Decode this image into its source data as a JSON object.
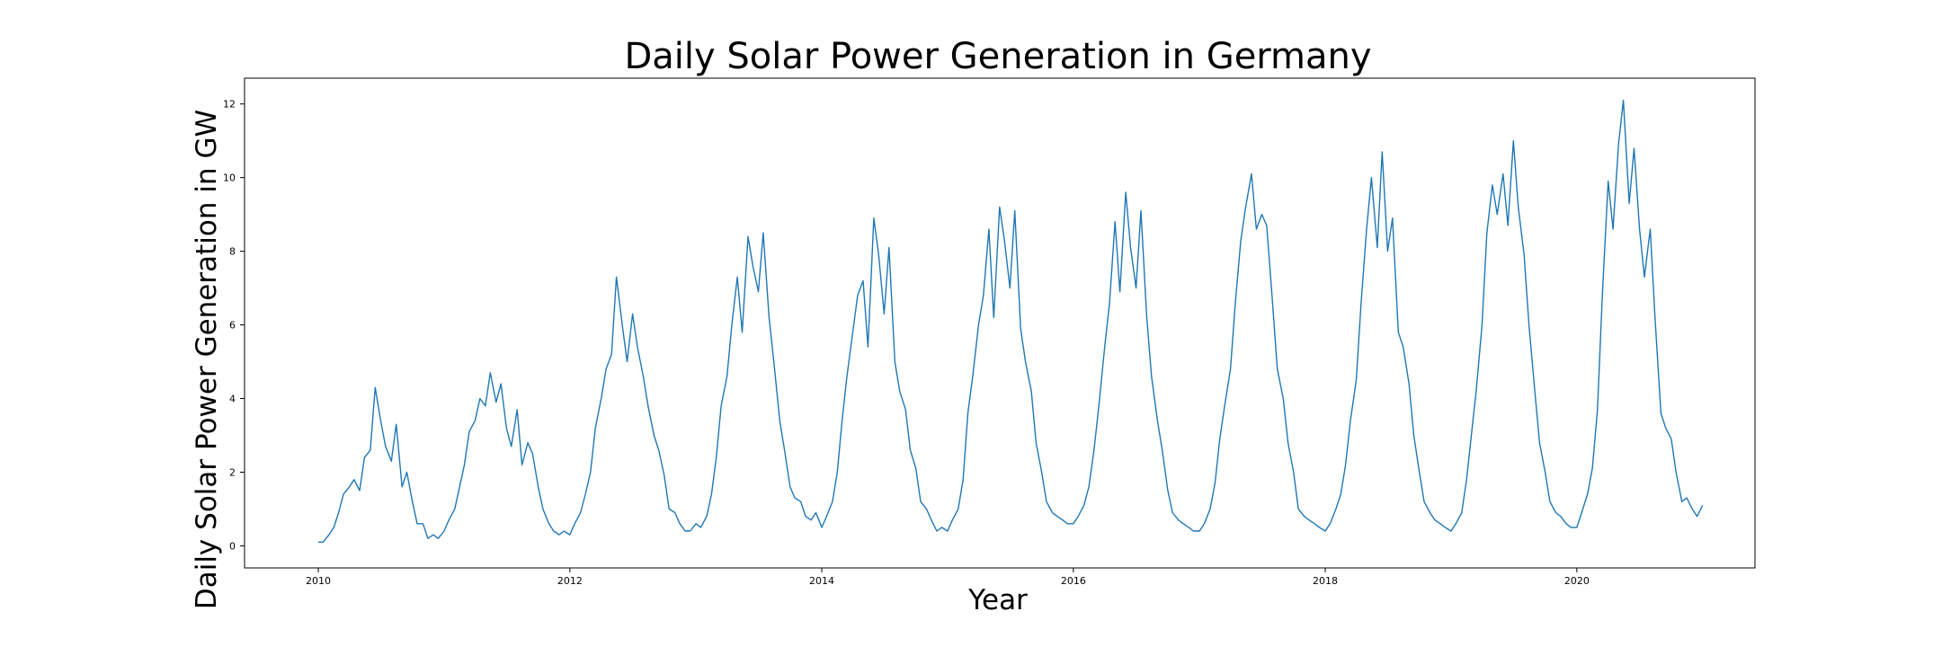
{
  "chart_data": {
    "type": "line",
    "title": "Daily Solar Power Generation in Germany",
    "xlabel": "Year",
    "ylabel": "Daily Solar Power Generation in GW",
    "xlim": [
      "2009-06-01",
      "2021-06-01"
    ],
    "ylim": [
      -0.6,
      12.7
    ],
    "x_ticks": [
      {
        "label": "2010",
        "date": "2010-01-01"
      },
      {
        "label": "2012",
        "date": "2012-01-01"
      },
      {
        "label": "2014",
        "date": "2014-01-01"
      },
      {
        "label": "2016",
        "date": "2016-01-01"
      },
      {
        "label": "2018",
        "date": "2018-01-01"
      },
      {
        "label": "2020",
        "date": "2020-01-01"
      }
    ],
    "y_ticks": [
      0,
      2,
      4,
      6,
      8,
      10,
      12
    ],
    "grid": false,
    "legend": "none",
    "series": [
      {
        "color": "#1f77b4",
        "x": [
          "2010-01-01",
          "2010-01-15",
          "2010-02-01",
          "2010-02-15",
          "2010-03-01",
          "2010-03-15",
          "2010-04-01",
          "2010-04-15",
          "2010-05-01",
          "2010-05-15",
          "2010-06-01",
          "2010-06-15",
          "2010-07-01",
          "2010-07-15",
          "2010-08-01",
          "2010-08-15",
          "2010-09-01",
          "2010-09-15",
          "2010-10-01",
          "2010-10-15",
          "2010-11-01",
          "2010-11-15",
          "2010-12-01",
          "2010-12-15",
          "2011-01-01",
          "2011-01-15",
          "2011-02-01",
          "2011-02-15",
          "2011-03-01",
          "2011-03-15",
          "2011-04-01",
          "2011-04-15",
          "2011-05-01",
          "2011-05-15",
          "2011-06-01",
          "2011-06-15",
          "2011-07-01",
          "2011-07-15",
          "2011-08-01",
          "2011-08-15",
          "2011-09-01",
          "2011-09-15",
          "2011-10-01",
          "2011-10-15",
          "2011-11-01",
          "2011-11-15",
          "2011-12-01",
          "2011-12-15",
          "2012-01-01",
          "2012-01-15",
          "2012-02-01",
          "2012-02-15",
          "2012-03-01",
          "2012-03-15",
          "2012-04-01",
          "2012-04-15",
          "2012-05-01",
          "2012-05-15",
          "2012-06-01",
          "2012-06-15",
          "2012-07-01",
          "2012-07-15",
          "2012-08-01",
          "2012-08-15",
          "2012-09-01",
          "2012-09-15",
          "2012-10-01",
          "2012-10-15",
          "2012-11-01",
          "2012-11-15",
          "2012-12-01",
          "2012-12-15",
          "2013-01-01",
          "2013-01-15",
          "2013-02-01",
          "2013-02-15",
          "2013-03-01",
          "2013-03-15",
          "2013-04-01",
          "2013-04-15",
          "2013-05-01",
          "2013-05-15",
          "2013-06-01",
          "2013-06-15",
          "2013-07-01",
          "2013-07-15",
          "2013-08-01",
          "2013-08-15",
          "2013-09-01",
          "2013-09-15",
          "2013-10-01",
          "2013-10-15",
          "2013-11-01",
          "2013-11-15",
          "2013-12-01",
          "2013-12-15",
          "2014-01-01",
          "2014-01-15",
          "2014-02-01",
          "2014-02-15",
          "2014-03-01",
          "2014-03-15",
          "2014-04-01",
          "2014-04-15",
          "2014-05-01",
          "2014-05-15",
          "2014-06-01",
          "2014-06-15",
          "2014-07-01",
          "2014-07-15",
          "2014-08-01",
          "2014-08-15",
          "2014-09-01",
          "2014-09-15",
          "2014-10-01",
          "2014-10-15",
          "2014-11-01",
          "2014-11-15",
          "2014-12-01",
          "2014-12-15",
          "2015-01-01",
          "2015-01-15",
          "2015-02-01",
          "2015-02-15",
          "2015-03-01",
          "2015-03-15",
          "2015-04-01",
          "2015-04-15",
          "2015-05-01",
          "2015-05-15",
          "2015-06-01",
          "2015-06-15",
          "2015-07-01",
          "2015-07-15",
          "2015-08-01",
          "2015-08-15",
          "2015-09-01",
          "2015-09-15",
          "2015-10-01",
          "2015-10-15",
          "2015-11-01",
          "2015-11-15",
          "2015-12-01",
          "2015-12-15",
          "2016-01-01",
          "2016-01-15",
          "2016-02-01",
          "2016-02-15",
          "2016-03-01",
          "2016-03-15",
          "2016-04-01",
          "2016-04-15",
          "2016-05-01",
          "2016-05-15",
          "2016-06-01",
          "2016-06-15",
          "2016-07-01",
          "2016-07-15",
          "2016-08-01",
          "2016-08-15",
          "2016-09-01",
          "2016-09-15",
          "2016-10-01",
          "2016-10-15",
          "2016-11-01",
          "2016-11-15",
          "2016-12-01",
          "2016-12-15",
          "2017-01-01",
          "2017-01-15",
          "2017-02-01",
          "2017-02-15",
          "2017-03-01",
          "2017-03-15",
          "2017-04-01",
          "2017-04-15",
          "2017-05-01",
          "2017-05-15",
          "2017-06-01",
          "2017-06-15",
          "2017-07-01",
          "2017-07-15",
          "2017-08-01",
          "2017-08-15",
          "2017-09-01",
          "2017-09-15",
          "2017-10-01",
          "2017-10-15",
          "2017-11-01",
          "2017-11-15",
          "2017-12-01",
          "2017-12-15",
          "2018-01-01",
          "2018-01-15",
          "2018-02-01",
          "2018-02-15",
          "2018-03-01",
          "2018-03-15",
          "2018-04-01",
          "2018-04-15",
          "2018-05-01",
          "2018-05-15",
          "2018-06-01",
          "2018-06-15",
          "2018-07-01",
          "2018-07-15",
          "2018-08-01",
          "2018-08-15",
          "2018-09-01",
          "2018-09-15",
          "2018-10-01",
          "2018-10-15",
          "2018-11-01",
          "2018-11-15",
          "2018-12-01",
          "2018-12-15",
          "2019-01-01",
          "2019-01-15",
          "2019-02-01",
          "2019-02-15",
          "2019-03-01",
          "2019-03-15",
          "2019-04-01",
          "2019-04-15",
          "2019-05-01",
          "2019-05-15",
          "2019-06-01",
          "2019-06-15",
          "2019-07-01",
          "2019-07-15",
          "2019-08-01",
          "2019-08-15",
          "2019-09-01",
          "2019-09-15",
          "2019-10-01",
          "2019-10-15",
          "2019-11-01",
          "2019-11-15",
          "2019-12-01",
          "2019-12-15",
          "2020-01-01",
          "2020-01-15",
          "2020-02-01",
          "2020-02-15",
          "2020-03-01",
          "2020-03-15",
          "2020-04-01",
          "2020-04-15",
          "2020-05-01",
          "2020-05-15",
          "2020-06-01",
          "2020-06-15",
          "2020-07-01",
          "2020-07-15",
          "2020-08-01",
          "2020-08-15",
          "2020-09-01",
          "2020-09-15",
          "2020-10-01",
          "2020-10-15",
          "2020-11-01",
          "2020-11-15",
          "2020-12-01",
          "2020-12-15",
          "2020-12-31"
        ],
        "y": [
          0.1,
          0.1,
          0.3,
          0.5,
          0.9,
          1.4,
          1.6,
          1.8,
          1.5,
          2.4,
          2.6,
          4.3,
          3.4,
          2.7,
          2.3,
          3.3,
          1.6,
          2.0,
          1.2,
          0.6,
          0.6,
          0.2,
          0.3,
          0.2,
          0.4,
          0.7,
          1.0,
          1.6,
          2.2,
          3.1,
          3.4,
          4.0,
          3.8,
          4.7,
          3.9,
          4.4,
          3.2,
          2.7,
          3.7,
          2.2,
          2.8,
          2.5,
          1.6,
          1.0,
          0.6,
          0.4,
          0.3,
          0.4,
          0.3,
          0.6,
          0.9,
          1.4,
          2.0,
          3.2,
          4.0,
          4.8,
          5.2,
          7.3,
          6.0,
          5.0,
          6.3,
          5.4,
          4.6,
          3.8,
          3.0,
          2.6,
          1.9,
          1.0,
          0.9,
          0.6,
          0.4,
          0.4,
          0.6,
          0.5,
          0.8,
          1.4,
          2.4,
          3.8,
          4.6,
          6.0,
          7.3,
          5.8,
          8.4,
          7.6,
          6.9,
          8.5,
          6.2,
          5.0,
          3.4,
          2.6,
          1.6,
          1.3,
          1.2,
          0.8,
          0.7,
          0.9,
          0.5,
          0.8,
          1.2,
          2.0,
          3.4,
          4.6,
          5.8,
          6.8,
          7.2,
          5.4,
          8.9,
          7.9,
          6.3,
          8.1,
          5.0,
          4.2,
          3.7,
          2.6,
          2.1,
          1.2,
          1.0,
          0.7,
          0.4,
          0.5,
          0.4,
          0.7,
          1.0,
          1.8,
          3.6,
          4.6,
          6.0,
          6.8,
          8.6,
          6.2,
          9.2,
          8.3,
          7.0,
          9.1,
          5.9,
          5.0,
          4.2,
          2.8,
          2.0,
          1.2,
          0.9,
          0.8,
          0.7,
          0.6,
          0.6,
          0.8,
          1.1,
          1.6,
          2.6,
          3.8,
          5.4,
          6.6,
          8.8,
          6.9,
          9.6,
          8.1,
          7.0,
          9.1,
          6.2,
          4.6,
          3.4,
          2.6,
          1.5,
          0.9,
          0.7,
          0.6,
          0.5,
          0.4,
          0.4,
          0.6,
          1.0,
          1.7,
          2.9,
          3.8,
          4.8,
          6.6,
          8.3,
          9.2,
          10.1,
          8.6,
          9.0,
          8.7,
          6.6,
          4.8,
          4.0,
          2.8,
          2.0,
          1.0,
          0.8,
          0.7,
          0.6,
          0.5,
          0.4,
          0.6,
          1.0,
          1.4,
          2.2,
          3.4,
          4.5,
          6.6,
          8.6,
          10.0,
          8.1,
          10.7,
          8.0,
          8.9,
          5.8,
          5.4,
          4.4,
          3.0,
          2.0,
          1.2,
          0.9,
          0.7,
          0.6,
          0.5,
          0.4,
          0.6,
          0.9,
          1.8,
          3.0,
          4.2,
          6.0,
          8.5,
          9.8,
          9.0,
          10.1,
          8.7,
          11.0,
          9.2,
          7.9,
          6.0,
          4.2,
          2.8,
          2.0,
          1.2,
          0.9,
          0.8,
          0.6,
          0.5,
          0.5,
          0.9,
          1.4,
          2.1,
          3.7,
          6.8,
          9.9,
          8.6,
          10.9,
          12.1,
          9.3,
          10.8,
          8.6,
          7.3,
          8.6,
          6.2,
          3.6,
          3.2,
          2.9,
          2.0,
          1.2,
          1.3,
          1.0,
          0.8,
          1.1
        ]
      }
    ]
  }
}
